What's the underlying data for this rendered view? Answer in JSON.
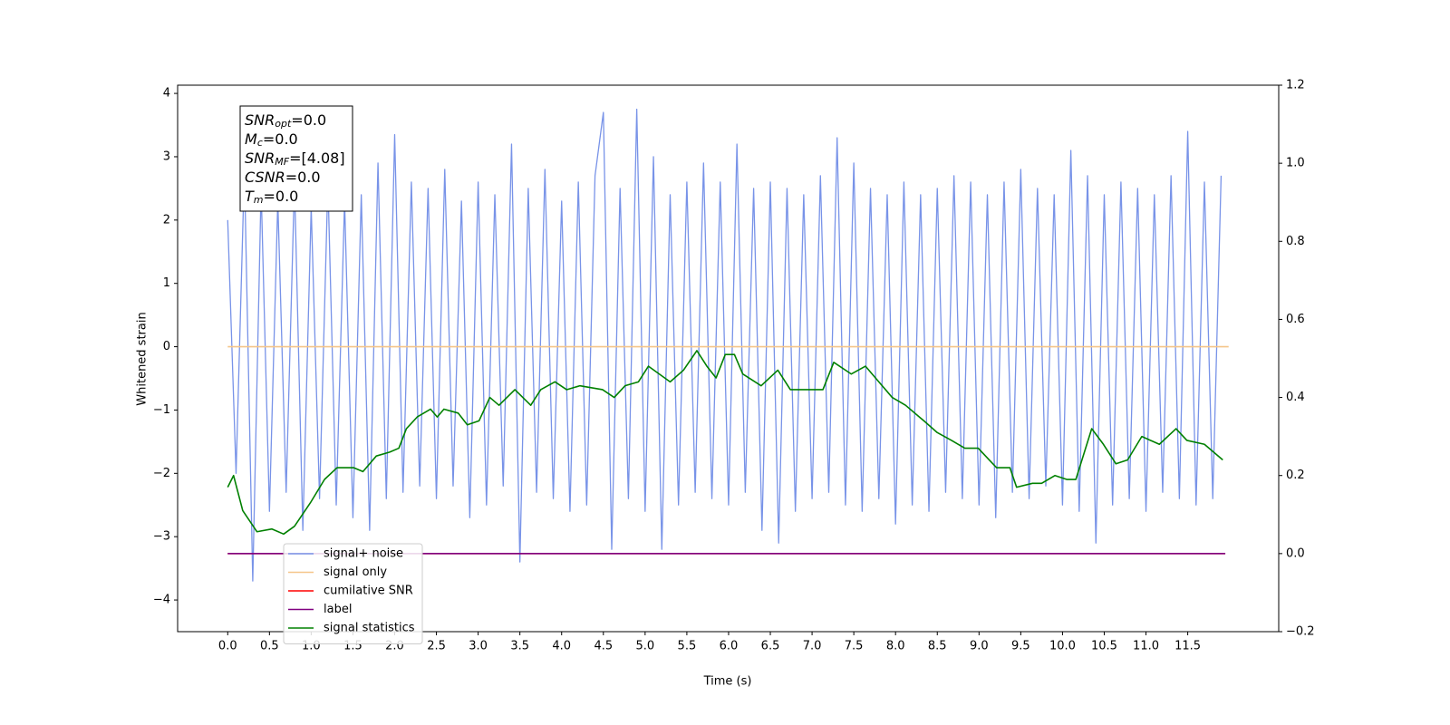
{
  "chart_data": {
    "type": "line",
    "xlabel": "Time (s)",
    "ylabel": "Whitened strain",
    "xlim": [
      -0.6,
      12.59
    ],
    "ylim": [
      -4.5,
      4.13
    ],
    "y2lim": [
      -0.2,
      1.2
    ],
    "xticks": [
      {
        "value": 0,
        "label": "0.0"
      },
      0.5,
      {
        "value": 1,
        "label": "1.0"
      },
      1.5,
      {
        "value": 2,
        "label": "2.0"
      },
      2.5,
      {
        "value": 3,
        "label": "3.0"
      },
      3.5,
      {
        "value": 4,
        "label": "4.0"
      },
      4.5,
      {
        "value": 5,
        "label": "5.0"
      },
      5.5,
      {
        "value": 6,
        "label": "6.0"
      },
      6.5,
      {
        "value": 7,
        "label": "7.0"
      },
      7.5,
      {
        "value": 8,
        "label": "8.0"
      },
      8.5,
      {
        "value": 9,
        "label": "9.0"
      },
      9.5,
      {
        "value": 10,
        "label": "10.0"
      },
      10.5,
      {
        "value": 11,
        "label": "11.0"
      },
      11.5
    ],
    "yticks": [
      {
        "value": -4,
        "label": "−4"
      },
      {
        "value": -3,
        "label": "−3"
      },
      {
        "value": -2,
        "label": "−2"
      },
      {
        "value": -1,
        "label": "−1"
      },
      0,
      1,
      2,
      3,
      4
    ],
    "y2ticks": [
      {
        "value": -0.2,
        "label": "−0.2"
      },
      {
        "value": 0,
        "label": "0.0"
      },
      0.2,
      0.4,
      0.6,
      0.8,
      {
        "value": 1,
        "label": "1.0"
      },
      1.2
    ],
    "legend": "lower left",
    "annotations": [
      {
        "name": "SNR",
        "sub": "opt",
        "text": "=0.0"
      },
      {
        "name": "M",
        "sub": "c",
        "text": "=0.0"
      },
      {
        "name": "SNR",
        "sub": "MF",
        "text": "=[4.08]"
      },
      {
        "name": "CSNR",
        "text": "=0.0"
      },
      {
        "name": "T",
        "sub": "m",
        "text": "=0.0"
      }
    ],
    "series": [
      {
        "name": "signal+ noise",
        "color": "#7893e8",
        "axis": "y",
        "x": [
          0,
          0.1,
          0.2,
          0.3,
          0.4,
          0.5,
          0.6,
          0.7,
          0.8,
          0.9,
          1,
          1.1,
          1.2,
          1.3,
          1.4,
          1.5,
          1.6,
          1.7,
          1.8,
          1.9,
          2,
          2.1,
          2.2,
          2.3,
          2.4,
          2.5,
          2.6,
          2.7,
          2.8,
          2.9,
          3,
          3.1,
          3.2,
          3.3,
          3.4,
          3.5,
          3.6,
          3.7,
          3.8,
          3.9,
          4,
          4.1,
          4.2,
          4.3,
          4.4,
          4.5,
          4.6,
          4.7,
          4.8,
          4.9,
          5,
          5.1,
          5.2,
          5.3,
          5.4,
          5.5,
          5.6,
          5.7,
          5.8,
          5.9,
          6,
          6.1,
          6.2,
          6.3,
          6.4,
          6.5,
          6.6,
          6.7,
          6.8,
          6.9,
          7,
          7.1,
          7.2,
          7.3,
          7.4,
          7.5,
          7.6,
          7.7,
          7.8,
          7.9,
          8,
          8.1,
          8.2,
          8.3,
          8.4,
          8.5,
          8.6,
          8.7,
          8.8,
          8.9,
          9,
          9.1,
          9.2,
          9.3,
          9.4,
          9.5,
          9.6,
          9.7,
          9.8,
          9.9,
          10,
          10.1,
          10.2,
          10.3,
          10.4,
          10.5,
          10.6,
          10.7,
          10.8,
          10.9,
          11,
          11.1,
          11.2,
          11.3,
          11.4,
          11.5,
          11.6,
          11.7,
          11.8,
          11.9
        ],
        "values": [
          2.0,
          -2.0,
          2.8,
          -3.7,
          2.5,
          -2.6,
          2.3,
          -2.3,
          2.6,
          -2.9,
          2.2,
          -2.4,
          2.6,
          -2.5,
          2.3,
          -2.7,
          2.4,
          -2.9,
          2.9,
          -2.4,
          3.35,
          -2.3,
          2.6,
          -2.2,
          2.5,
          -2.4,
          2.8,
          -2.2,
          2.3,
          -2.7,
          2.6,
          -2.5,
          2.4,
          -2.2,
          3.2,
          -3.4,
          2.5,
          -2.3,
          2.8,
          -2.4,
          2.3,
          -2.6,
          2.6,
          -2.5,
          2.7,
          3.7,
          -3.2,
          2.5,
          -2.4,
          3.75,
          -2.6,
          3.0,
          -3.2,
          2.4,
          -2.5,
          2.6,
          -2.3,
          2.9,
          -2.4,
          2.6,
          -2.5,
          3.2,
          -2.3,
          2.5,
          -2.9,
          2.6,
          -3.1,
          2.5,
          -2.6,
          2.4,
          -2.4,
          2.7,
          -2.3,
          3.3,
          -2.5,
          2.9,
          -2.6,
          2.5,
          -2.4,
          2.4,
          -2.8,
          2.6,
          -2.5,
          2.4,
          -2.6,
          2.5,
          -2.3,
          2.7,
          -2.4,
          2.6,
          -2.5,
          2.4,
          -2.7,
          2.6,
          -2.3,
          2.8,
          -2.4,
          2.5,
          -2.2,
          2.4,
          -2.5,
          3.1,
          -2.6,
          2.7,
          -3.1,
          2.4,
          -2.5,
          2.6,
          -2.4,
          2.5,
          -2.6,
          2.4,
          -2.3,
          2.7,
          -2.4,
          3.4,
          -2.5,
          2.6,
          -2.4,
          2.7
        ]
      },
      {
        "name": "signal only",
        "color": "#f5c68a",
        "axis": "y",
        "x": [
          0,
          11.99
        ],
        "values": [
          0,
          0
        ]
      },
      {
        "name": "cumilative SNR",
        "color": "#ff0000",
        "axis": "y2",
        "x": [
          0,
          11.95
        ],
        "values": [
          0,
          0
        ]
      },
      {
        "name": "label",
        "color": "#800080",
        "axis": "y2",
        "x": [
          0,
          11.95
        ],
        "values": [
          0,
          0
        ]
      },
      {
        "name": "signal statistics",
        "color": "#008000",
        "axis": "y2",
        "x": [
          0,
          0.07,
          0.18,
          0.35,
          0.53,
          0.67,
          0.8,
          0.99,
          1.16,
          1.31,
          1.51,
          1.62,
          1.78,
          1.94,
          2.05,
          2.14,
          2.27,
          2.43,
          2.51,
          2.59,
          2.76,
          2.87,
          3.01,
          3.14,
          3.25,
          3.44,
          3.63,
          3.75,
          3.92,
          4.06,
          4.22,
          4.49,
          4.63,
          4.76,
          4.92,
          5.04,
          5.3,
          5.46,
          5.62,
          5.74,
          5.85,
          5.96,
          6.07,
          6.17,
          6.39,
          6.59,
          6.74,
          6.99,
          7.13,
          7.26,
          7.47,
          7.64,
          7.8,
          7.96,
          8.12,
          8.34,
          8.5,
          8.67,
          8.83,
          8.99,
          9.21,
          9.37,
          9.45,
          9.64,
          9.75,
          9.91,
          10.05,
          10.16,
          10.35,
          10.49,
          10.64,
          10.78,
          10.95,
          11.16,
          11.36,
          11.49,
          11.7,
          11.92
        ],
        "values": [
          0.17,
          0.2,
          0.11,
          0.056,
          0.063,
          0.05,
          0.07,
          0.13,
          0.19,
          0.22,
          0.22,
          0.21,
          0.25,
          0.26,
          0.27,
          0.32,
          0.35,
          0.37,
          0.35,
          0.37,
          0.36,
          0.33,
          0.34,
          0.4,
          0.38,
          0.42,
          0.38,
          0.42,
          0.44,
          0.42,
          0.43,
          0.42,
          0.4,
          0.43,
          0.44,
          0.48,
          0.44,
          0.47,
          0.52,
          0.48,
          0.45,
          0.51,
          0.51,
          0.46,
          0.43,
          0.47,
          0.42,
          0.42,
          0.42,
          0.49,
          0.46,
          0.48,
          0.44,
          0.4,
          0.38,
          0.34,
          0.31,
          0.29,
          0.27,
          0.27,
          0.22,
          0.22,
          0.17,
          0.18,
          0.18,
          0.2,
          0.19,
          0.19,
          0.32,
          0.28,
          0.23,
          0.24,
          0.3,
          0.28,
          0.32,
          0.29,
          0.28,
          0.24
        ]
      }
    ]
  }
}
